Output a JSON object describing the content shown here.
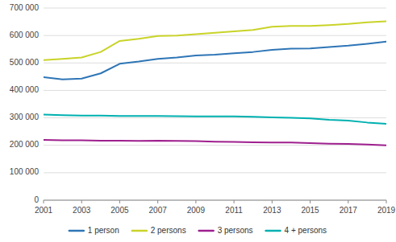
{
  "chart_data": {
    "type": "line",
    "x": [
      2001,
      2002,
      2003,
      2004,
      2005,
      2006,
      2007,
      2008,
      2009,
      2010,
      2011,
      2012,
      2013,
      2014,
      2015,
      2016,
      2017,
      2018,
      2019
    ],
    "series": [
      {
        "name": "1 person",
        "color": "#2E75B6",
        "values": [
          448000,
          440000,
          443000,
          462000,
          497000,
          505000,
          515000,
          520000,
          527000,
          530000,
          535000,
          540000,
          548000,
          552000,
          553000,
          558000,
          563000,
          570000,
          578000
        ]
      },
      {
        "name": "2 persons",
        "color": "#C9D328",
        "values": [
          510000,
          515000,
          520000,
          540000,
          580000,
          588000,
          598000,
          600000,
          605000,
          610000,
          615000,
          620000,
          632000,
          635000,
          635000,
          638000,
          642000,
          648000,
          652000
        ]
      },
      {
        "name": "3 persons",
        "color": "#9E1F8E",
        "values": [
          220000,
          218000,
          218000,
          217000,
          217000,
          216000,
          217000,
          216000,
          215000,
          213000,
          212000,
          211000,
          210000,
          210000,
          208000,
          206000,
          205000,
          203000,
          200000
        ]
      },
      {
        "name": "4 + persons",
        "color": "#00B0B0",
        "values": [
          312000,
          310000,
          308000,
          308000,
          307000,
          307000,
          307000,
          306000,
          305000,
          305000,
          305000,
          304000,
          302000,
          300000,
          298000,
          293000,
          290000,
          283000,
          278000
        ]
      }
    ],
    "xlim": [
      2001,
      2019
    ],
    "xticks": [
      2001,
      2003,
      2005,
      2007,
      2009,
      2011,
      2013,
      2015,
      2017,
      2019
    ],
    "ylim": [
      0,
      700000
    ],
    "yticks": [
      0,
      {
        "value": 100000,
        "label": "100 000"
      },
      {
        "value": 200000,
        "label": "200 000"
      },
      {
        "value": 300000,
        "label": "300 000"
      },
      {
        "value": 400000,
        "label": "400 000"
      },
      {
        "value": 500000,
        "label": "500 000"
      },
      {
        "value": 600000,
        "label": "600 000"
      },
      {
        "value": 700000,
        "label": "700 000"
      }
    ],
    "grid": true,
    "legend": "bottom"
  }
}
